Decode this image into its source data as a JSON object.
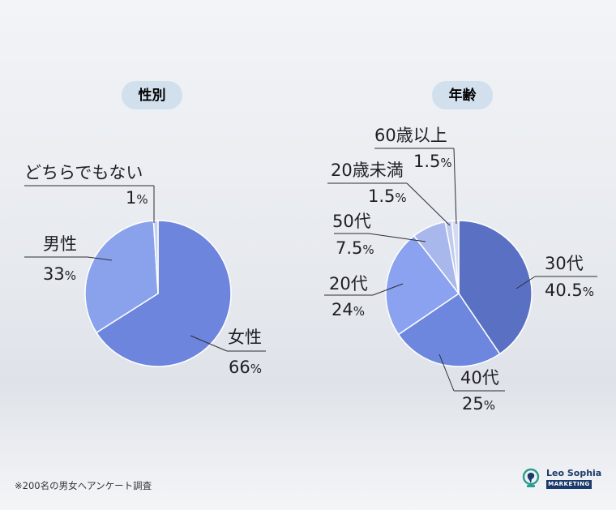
{
  "chart_data": [
    {
      "type": "pie",
      "title": "性別",
      "slices": [
        {
          "label": "女性",
          "value": 66,
          "display": "66",
          "color": "#6d85dc"
        },
        {
          "label": "男性",
          "value": 33,
          "display": "33",
          "color": "#8aa2ec"
        },
        {
          "label": "どちらでもない",
          "value": 1,
          "display": "1",
          "color": "#c7d0ee"
        }
      ],
      "unit": "%"
    },
    {
      "type": "pie",
      "title": "年齢",
      "slices": [
        {
          "label": "30代",
          "value": 40.5,
          "display": "40.5",
          "color": "#5a71c3"
        },
        {
          "label": "40代",
          "value": 25,
          "display": "25",
          "color": "#6e87de"
        },
        {
          "label": "20代",
          "value": 24,
          "display": "24",
          "color": "#8aa2ef"
        },
        {
          "label": "50代",
          "value": 7.5,
          "display": "7.5",
          "color": "#a8b8ec"
        },
        {
          "label": "20歳未満",
          "value": 1.5,
          "display": "1.5",
          "color": "#c0cbee"
        },
        {
          "label": "60歳以上",
          "value": 1.5,
          "display": "1.5",
          "color": "#d3daf2"
        }
      ],
      "unit": "%"
    }
  ],
  "footnote": "※200名の男女へアンケート調査",
  "brand": {
    "name": "Leo Sophia",
    "sub": "MARKETING",
    "color": "#1b3a6b"
  }
}
